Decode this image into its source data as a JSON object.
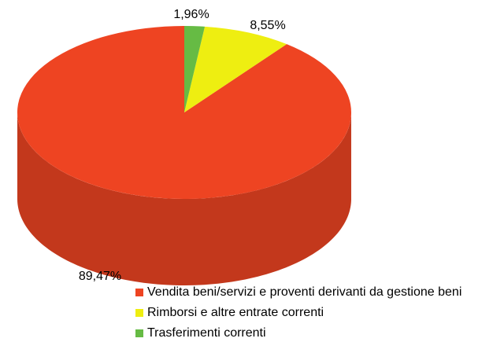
{
  "chart_data": {
    "type": "pie",
    "categories": [
      "Vendita beni/servizi e proventi derivanti da gestione beni",
      "Rimborsi e altre entrate correnti",
      "Trasferimenti correnti"
    ],
    "values": [
      89.47,
      8.55,
      1.96
    ],
    "value_labels": [
      "89,47%",
      "8,55%",
      "1,96%"
    ],
    "colors": [
      "#ee4422",
      "#eeee11",
      "#66bb44"
    ]
  }
}
